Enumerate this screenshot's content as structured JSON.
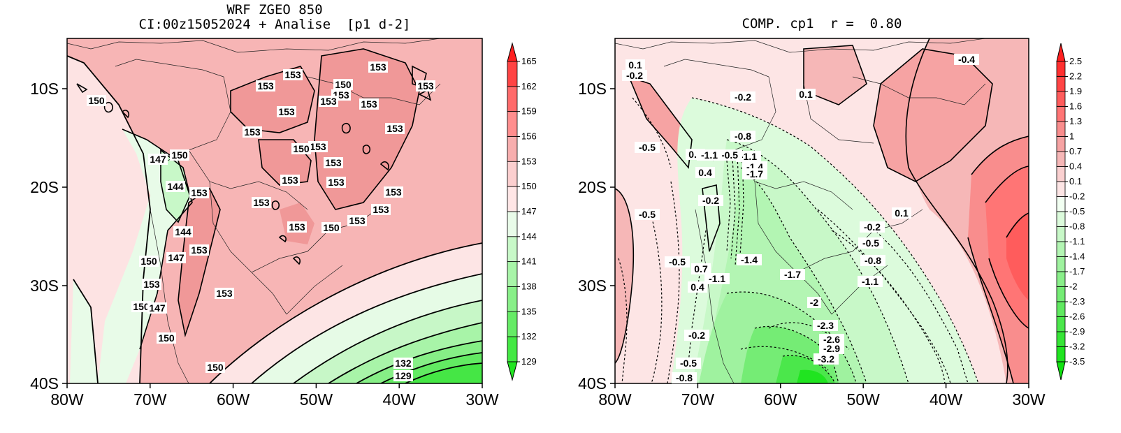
{
  "left_map": {
    "title_line1": "WRF ZGEO 850",
    "title_line2": "CI:00z15052024 + Analise  [p1 d-2]",
    "x_ticks": [
      "80W",
      "70W",
      "60W",
      "50W",
      "40W",
      "30W"
    ],
    "y_ticks": [
      "10S",
      "20S",
      "30S",
      "40S"
    ],
    "colorbar": [
      "165",
      "162",
      "159",
      "156",
      "153",
      "150",
      "147",
      "144",
      "141",
      "138",
      "135",
      "132",
      "129"
    ],
    "colorbar_colors": [
      "#ff2020",
      "#ff4444",
      "#ff6a6a",
      "#ff8e8e",
      "#f7aeae",
      "#fbcfcf",
      "#ffe6e6",
      "#e9fbe9",
      "#c8f8c8",
      "#a8f4a8",
      "#88ef88",
      "#66eb66",
      "#44e844",
      "#22e522"
    ],
    "labels": [
      "150",
      "153",
      "153",
      "153",
      "153",
      "153",
      "150",
      "153",
      "153",
      "153",
      "153",
      "153",
      "153",
      "150",
      "153",
      "153",
      "153",
      "153",
      "153",
      "153",
      "147",
      "150",
      "144",
      "153",
      "144",
      "153",
      "147",
      "153",
      "153",
      "150",
      "153",
      "153",
      "150",
      "147",
      "150",
      "150",
      "150",
      "132",
      "129"
    ]
  },
  "right_map": {
    "title": "COMP. cp1  r =  0.80",
    "x_ticks": [
      "80W",
      "70W",
      "60W",
      "50W",
      "40W",
      "30W"
    ],
    "y_ticks": [
      "10S",
      "20S",
      "30S",
      "40S"
    ],
    "colorbar": [
      "2.5",
      "2.2",
      "1.9",
      "1.6",
      "1.3",
      "1",
      "0.7",
      "0.4",
      "0.1",
      "-0.2",
      "-0.5",
      "-0.8",
      "-1.1",
      "-1.4",
      "-1.7",
      "-2",
      "-2.3",
      "-2.6",
      "-2.9",
      "-3.2",
      "-3.5"
    ],
    "colorbar_colors": [
      "#ff1f1f",
      "#ff3030",
      "#ff4545",
      "#ff5c5c",
      "#ff7575",
      "#f98d8d",
      "#f6a3a3",
      "#f6b7b7",
      "#fad0d0",
      "#fde5e5",
      "#f2fff2",
      "#dcfbdc",
      "#c8f8c8",
      "#b3f5b3",
      "#9ff29f",
      "#8aef8a",
      "#75ec75",
      "#60e960",
      "#4be74b",
      "#36e536",
      "#20e420",
      "#10e210"
    ],
    "labels": [
      "0.1",
      "-0.2",
      "-0.2",
      "0.1",
      "-0.4",
      "-0.2",
      "-0.8",
      "-0.5",
      "0.4",
      "-1.1",
      "-0.5",
      "-1.1",
      "-1.4",
      "-1.7",
      "0.4",
      "-0.2",
      "-0.5",
      "0.1",
      "-0.2",
      "-0.5",
      "-0.8",
      "-1.4",
      "-0.5",
      "0.7",
      "-1.1",
      "-1.7",
      "-1.1",
      "0.4",
      "-2",
      "-2.3",
      "-2.6",
      "-2.9",
      "-3.2",
      "-0.2",
      "-0.5",
      "-0.8"
    ]
  }
}
